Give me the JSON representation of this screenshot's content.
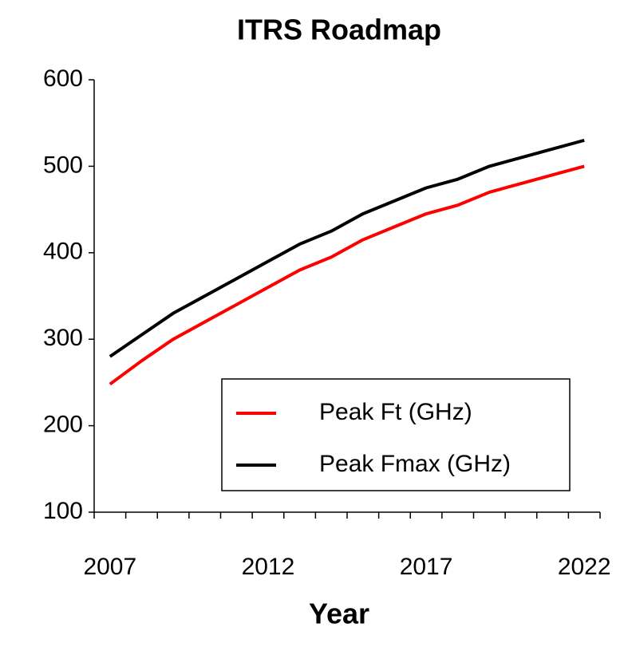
{
  "chart_data": {
    "type": "line",
    "title": "ITRS Roadmap",
    "x_label": "Year",
    "categories": [
      "2007",
      null,
      null,
      null,
      null,
      "2012",
      null,
      null,
      null,
      null,
      "2017",
      null,
      null,
      null,
      null,
      "2022"
    ],
    "series": [
      {
        "name": "Peak Ft (GHz)",
        "color": "#ff0000",
        "values": [
          248,
          275,
          300,
          320,
          340,
          360,
          380,
          395,
          415,
          430,
          445,
          455,
          470,
          480,
          490,
          500
        ]
      },
      {
        "name": "Peak Fmax (GHz)",
        "color": "#000000",
        "values": [
          280,
          305,
          330,
          350,
          370,
          390,
          410,
          425,
          445,
          460,
          475,
          485,
          500,
          510,
          520,
          530
        ]
      }
    ],
    "ylim": [
      100,
      600
    ],
    "yticks": [
      100,
      200,
      300,
      400,
      500,
      600
    ],
    "grid": false,
    "legend": "lower right"
  }
}
